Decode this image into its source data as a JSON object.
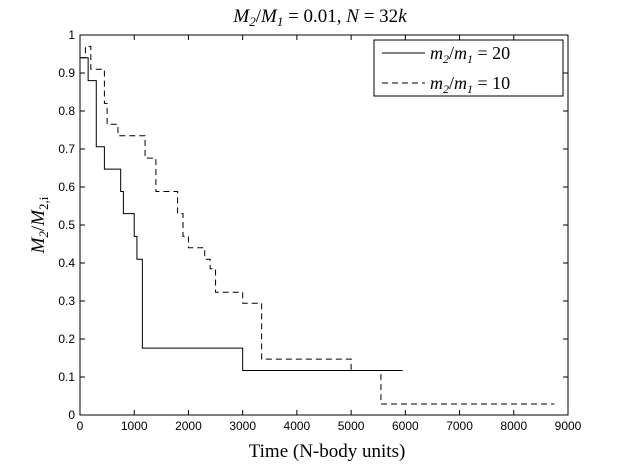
{
  "chart_data": {
    "type": "line",
    "title": "M2/M1 = 0.01, N = 32k",
    "xlabel": "Time (N-body units)",
    "ylabel": "M2/M2,i",
    "xlim": [
      0,
      9000
    ],
    "ylim": [
      0,
      1
    ],
    "xticks": [
      0,
      1000,
      2000,
      3000,
      4000,
      5000,
      6000,
      7000,
      8000,
      9000
    ],
    "yticks": [
      0,
      0.1,
      0.2,
      0.3,
      0.4,
      0.5,
      0.6,
      0.7,
      0.8,
      0.9,
      1
    ],
    "grid": false,
    "legend_position": "top-right",
    "series": [
      {
        "name": "m2/m1 = 20",
        "style": "solid",
        "color": "#000000",
        "step": true,
        "x": [
          0,
          100,
          150,
          250,
          300,
          450,
          700,
          750,
          800,
          1000,
          1050,
          1100,
          1150,
          3000,
          5950
        ],
        "y": [
          0.94,
          0.94,
          0.88,
          0.88,
          0.706,
          0.647,
          0.647,
          0.588,
          0.53,
          0.47,
          0.41,
          0.41,
          0.176,
          0.117,
          0.117
        ]
      },
      {
        "name": "m2/m1 = 10",
        "style": "dashed",
        "color": "#000000",
        "step": true,
        "x": [
          0,
          100,
          200,
          350,
          450,
          500,
          700,
          800,
          1200,
          1400,
          1500,
          1800,
          1900,
          2000,
          2300,
          2400,
          2500,
          2900,
          3000,
          3350,
          3500,
          4950,
          5000,
          5550,
          8750
        ],
        "y": [
          0.94,
          0.97,
          0.91,
          0.91,
          0.82,
          0.765,
          0.735,
          0.735,
          0.676,
          0.588,
          0.588,
          0.53,
          0.47,
          0.44,
          0.41,
          0.385,
          0.323,
          0.323,
          0.294,
          0.147,
          0.147,
          0.147,
          0.117,
          0.029,
          0.029
        ]
      }
    ]
  }
}
